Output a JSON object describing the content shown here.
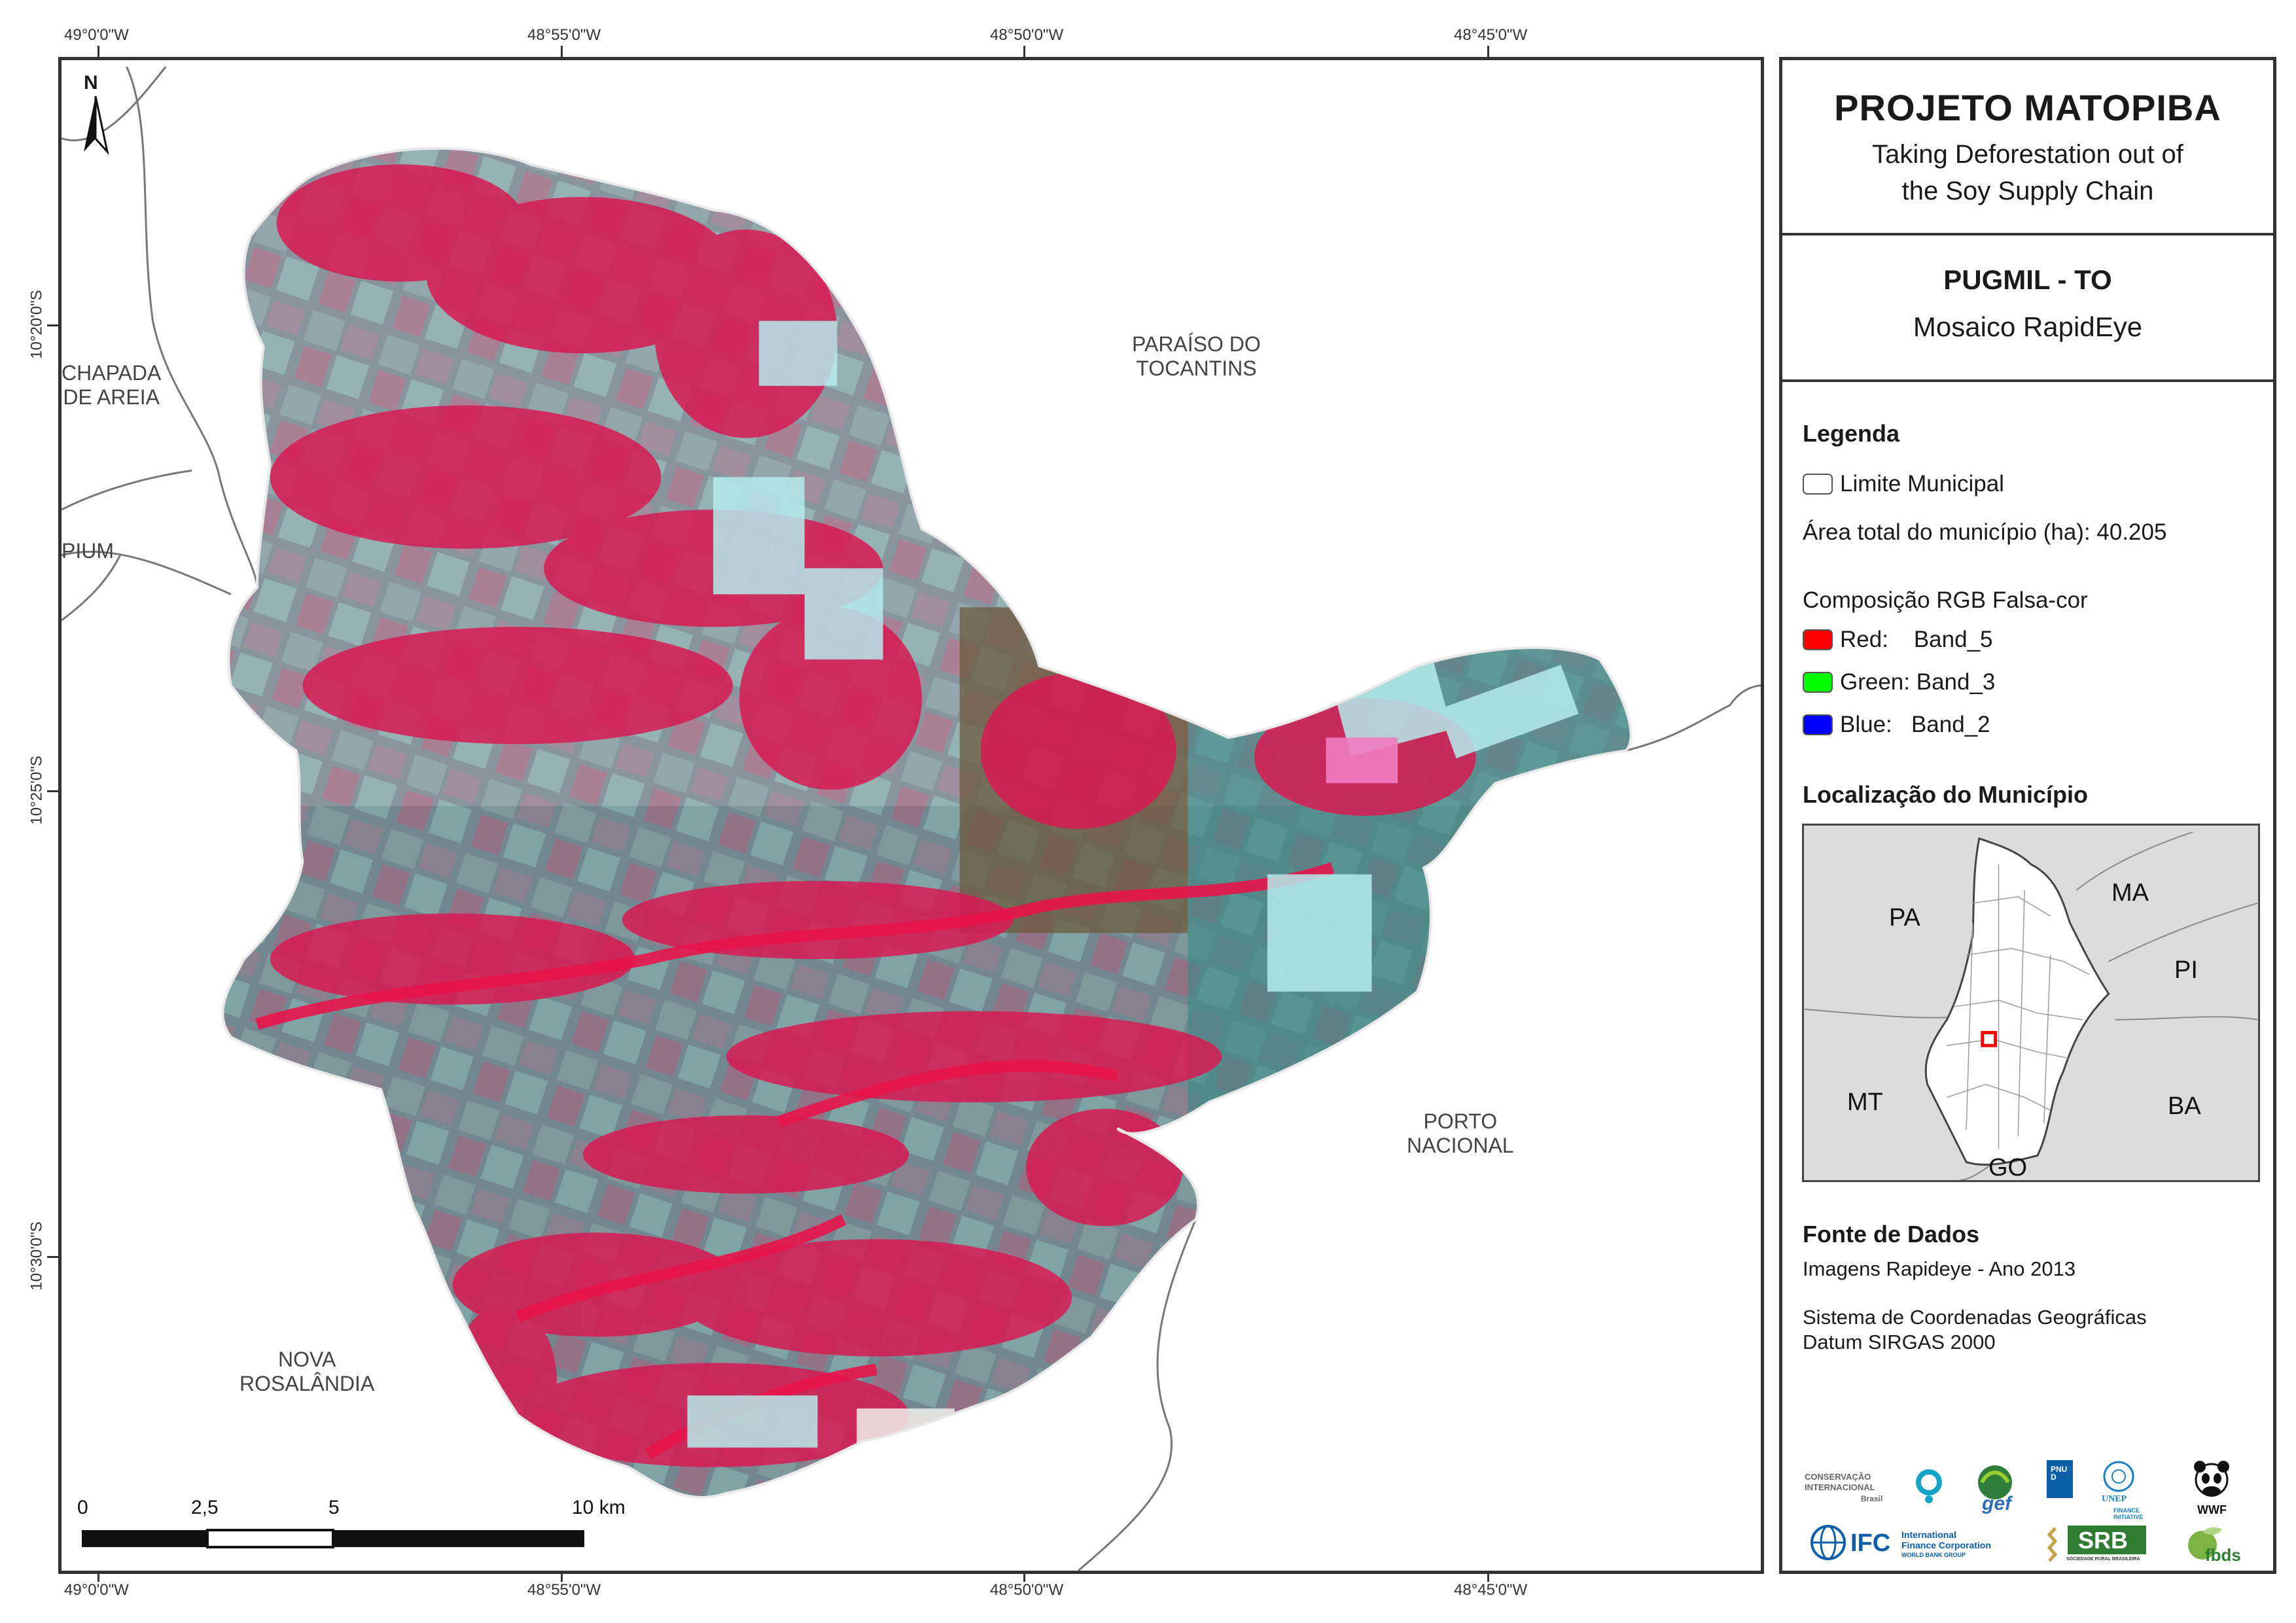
{
  "coordinates": {
    "top": [
      "49°0'0\"W",
      "48°55'0\"W",
      "48°50'0\"W",
      "48°45'0\"W"
    ],
    "bottom": [
      "49°0'0\"W",
      "48°55'0\"W",
      "48°50'0\"W",
      "48°45'0\"W"
    ],
    "left": [
      "10°20'0\"S",
      "10°25'0\"S",
      "10°30'0\"S"
    ]
  },
  "places": {
    "chapada": "CHAPADA\nDE AREIA",
    "pium": "PIUM",
    "paraiso": "PARAÍSO DO\nTOCANTINS",
    "porto": "PORTO\nNACIONAL",
    "nova": "NOVA\nROSALÂNDIA"
  },
  "north_label": "N",
  "scale": {
    "ticks": [
      "0",
      "2,5",
      "5",
      "10 km"
    ]
  },
  "panel": {
    "title": "PROJETO MATOPIBA",
    "subtitle_line1": "Taking Deforestation out of",
    "subtitle_line2": "the Soy Supply Chain",
    "municipality": "PUGMIL - TO",
    "mosaic": "Mosaico RapidEye",
    "legend_heading": "Legenda",
    "legend_boundary": "Limite Municipal",
    "legend_area": "Área total do município (ha): 40.205",
    "legend_rgb": "Composição RGB Falsa-cor",
    "bands": [
      {
        "label": "Red:    Band_5",
        "color": "#ff0000"
      },
      {
        "label": "Green: Band_3",
        "color": "#00ff00"
      },
      {
        "label": "Blue:   Band_2",
        "color": "#0000ff"
      }
    ],
    "location_heading": "Localização do Município",
    "states": {
      "pa": "PA",
      "ma": "MA",
      "pi": "PI",
      "mt": "MT",
      "ba": "BA",
      "go": "GO"
    },
    "sources_heading": "Fonte de Dados",
    "source_images": "Imagens Rapideye - Ano 2013",
    "coord_system": "Sistema de Coordenadas Geográficas",
    "datum": "Datum SIRGAS 2000",
    "logos": {
      "ci_line1": "CONSERVAÇÃO",
      "ci_line2": "INTERNACIONAL",
      "ci_line3": "Brasil",
      "gef": "gef",
      "undp": "PNUD",
      "unep": "UNEP",
      "unep_sub": "FINANCE INITIATIVE",
      "wwf": "WWF",
      "ifc": "IFC",
      "ifc_line1": "International",
      "ifc_line2": "Finance Corporation",
      "ifc_line3": "WORLD BANK GROUP",
      "srb": "SRB",
      "srb_sub": "SOCIEDADE RURAL BRASILEIRA",
      "fbds": "fbds"
    }
  },
  "colors": {
    "veg_red": "#d81a52",
    "field_cyan": "#8fd7d4",
    "frame": "#333333"
  }
}
